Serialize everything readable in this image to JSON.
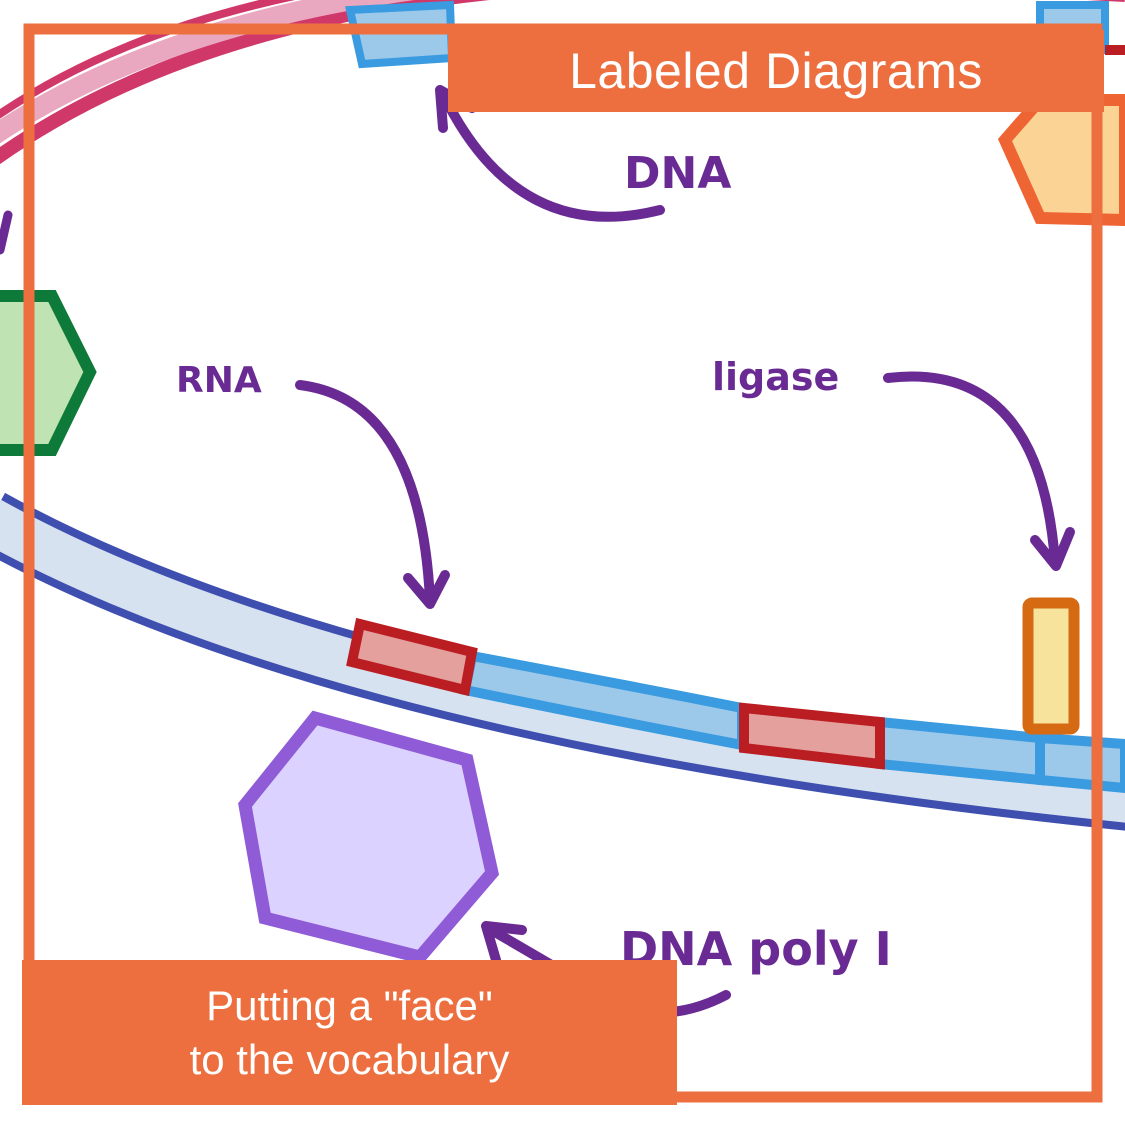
{
  "title": "Labeled Diagrams",
  "caption": {
    "line1": "Putting a \"face\"",
    "line2": "to the vocabulary"
  },
  "labels": {
    "dna": "DNA",
    "rna": "RNA",
    "ligase": "ligase",
    "dna_poly": "DNA poly I"
  },
  "colors": {
    "frame": "#ed6f3f",
    "annotation": "#6a2a93",
    "dna_strand_outline": "#3f4fb0",
    "dna_strand_fill": "#d6e2ef",
    "segment_blue_outline": "#3a9be0",
    "segment_blue_fill": "#9cc8ea",
    "primer_red_outline": "#bb1e22",
    "primer_red_fill": "#e3a09d",
    "polymerase_purple_outline": "#8f5bd6",
    "polymerase_purple_fill": "#dcd2ff",
    "ligase_orange_outline": "#d56a13",
    "ligase_yellow_fill": "#f7e39b",
    "green_outline": "#0d7a3a",
    "green_fill": "#bfe3b3",
    "outer_pink": "#d1386a"
  }
}
